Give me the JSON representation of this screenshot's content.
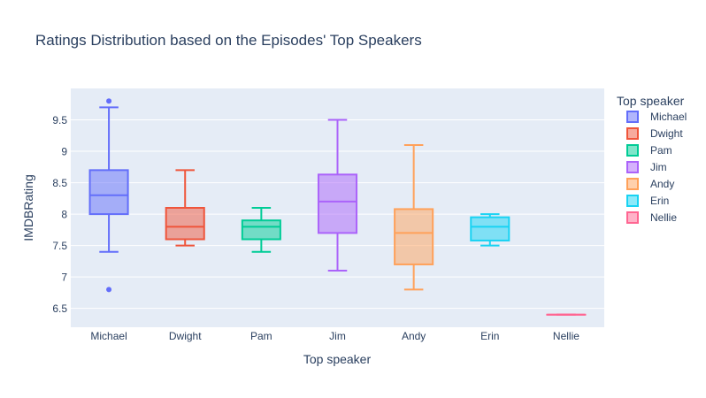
{
  "chart_data": {
    "type": "box",
    "title": "Ratings Distribution based on the Episodes' Top Speakers",
    "xlabel": "Top speaker",
    "ylabel": "IMDBRating",
    "ylim": [
      6.2,
      10.0
    ],
    "yticks": [
      6.5,
      7,
      7.5,
      8,
      8.5,
      9,
      9.5
    ],
    "ytick_labels": [
      "6.5",
      "7",
      "7.5",
      "8",
      "8.5",
      "9",
      "9.5"
    ],
    "grid": true,
    "legend_title": "Top speaker",
    "legend_position": "right",
    "categories": [
      "Michael",
      "Dwight",
      "Pam",
      "Jim",
      "Andy",
      "Erin",
      "Nellie"
    ],
    "series": [
      {
        "name": "Michael",
        "color": "#636efa",
        "min": 7.4,
        "q1": 8.0,
        "median": 8.3,
        "q3": 8.7,
        "max": 9.7,
        "outliers": [
          9.8,
          6.8
        ]
      },
      {
        "name": "Dwight",
        "color": "#ef553b",
        "min": 7.5,
        "q1": 7.6,
        "median": 7.8,
        "q3": 8.1,
        "max": 8.7,
        "outliers": []
      },
      {
        "name": "Pam",
        "color": "#00cc96",
        "min": 7.4,
        "q1": 7.6,
        "median": 7.8,
        "q3": 7.9,
        "max": 8.1,
        "outliers": []
      },
      {
        "name": "Jim",
        "color": "#ab63fa",
        "min": 7.1,
        "q1": 7.7,
        "median": 8.2,
        "q3": 8.63,
        "max": 9.5,
        "outliers": []
      },
      {
        "name": "Andy",
        "color": "#ffa15a",
        "min": 6.8,
        "q1": 7.2,
        "median": 7.7,
        "q3": 8.08,
        "max": 9.1,
        "outliers": []
      },
      {
        "name": "Erin",
        "color": "#19d3f3",
        "min": 7.5,
        "q1": 7.58,
        "median": 7.8,
        "q3": 7.95,
        "max": 8.0,
        "outliers": []
      },
      {
        "name": "Nellie",
        "color": "#ff6692",
        "min": 6.4,
        "q1": 6.4,
        "median": 6.4,
        "q3": 6.4,
        "max": 6.4,
        "outliers": []
      }
    ]
  }
}
